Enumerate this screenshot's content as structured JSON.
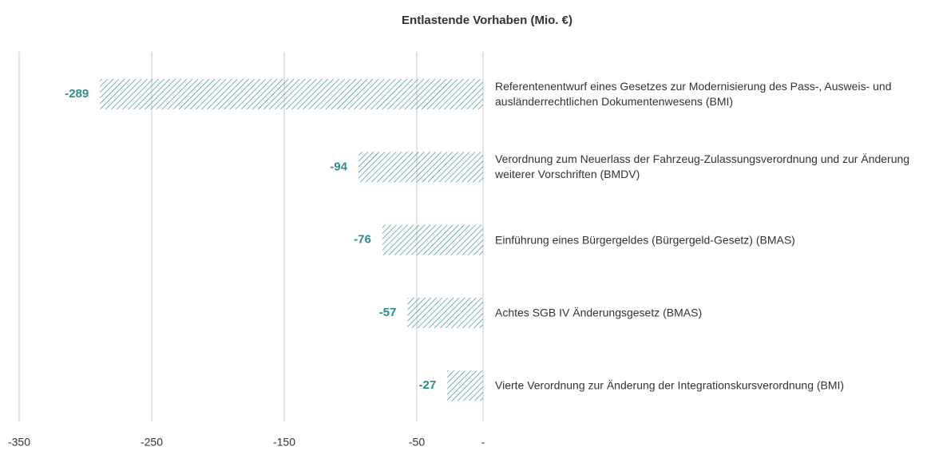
{
  "chart_data": {
    "type": "bar",
    "orientation": "horizontal",
    "title": "Entlastende Vorhaben (Mio. €)",
    "categories": [
      "Referentenentwurf eines Gesetzes zur Modernisierung des Pass-, Ausweis- und ausländerrechtlichen Dokumentenwesens (BMI)",
      "Verordnung zum Neuerlass der Fahrzeug-Zulassungsverordnung und zur Änderung weiterer Vorschriften (BMDV)",
      "Einführung eines Bürgergeldes (Bürgergeld-Gesetz) (BMAS)",
      "Achtes SGB IV Änderungsgesetz (BMAS)",
      "Vierte Verordnung zur Änderung der Integrationskursverordnung (BMI)"
    ],
    "values": [
      -289,
      -94,
      -76,
      -57,
      -27
    ],
    "color": "#2a8c8c",
    "xlim": [
      -350,
      0
    ],
    "xticks": [
      -350,
      -250,
      -150,
      -50,
      {
        "value": 0,
        "label": "-"
      }
    ],
    "grid": true
  }
}
